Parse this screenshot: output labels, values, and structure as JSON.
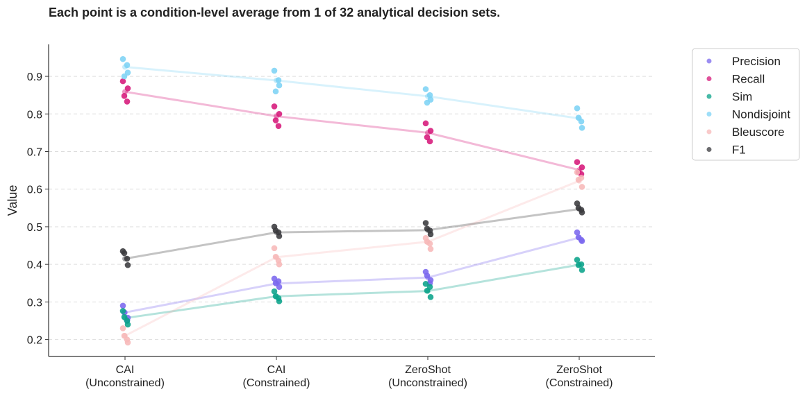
{
  "chart_data": {
    "type": "scatter",
    "title": "Each point is a condition-level average from 1 of 32 analytical decision sets.",
    "xlabel": "",
    "ylabel": "Value",
    "ylim": [
      0.155,
      0.985
    ],
    "yticks": [
      0.2,
      0.3,
      0.4,
      0.5,
      0.6,
      0.7,
      0.8,
      0.9
    ],
    "grid": "horizontal-dashed",
    "legend_position": "upper-right-outside",
    "categories": [
      [
        "CAI",
        "(Unconstrained)"
      ],
      [
        "CAI",
        "(Constrained)"
      ],
      [
        "ZeroShot",
        "(Unconstrained)"
      ],
      [
        "ZeroShot",
        "(Constrained)"
      ]
    ],
    "series": [
      {
        "name": "Precision",
        "color": "#7b68ee",
        "means": [
          0.272,
          0.349,
          0.365,
          0.471
        ],
        "points": [
          [
            0.29,
            0.258,
            0.272,
            0.25
          ],
          [
            0.362,
            0.34,
            0.35,
            0.355
          ],
          [
            0.38,
            0.358,
            0.37,
            0.35
          ],
          [
            0.485,
            0.462,
            0.472,
            0.465
          ]
        ]
      },
      {
        "name": "Recall",
        "color": "#d6187a",
        "means": [
          0.859,
          0.794,
          0.75,
          0.651
        ],
        "points": [
          [
            0.887,
            0.868,
            0.848,
            0.833
          ],
          [
            0.82,
            0.8,
            0.783,
            0.768
          ],
          [
            0.775,
            0.755,
            0.738,
            0.727
          ],
          [
            0.672,
            0.658,
            0.645,
            0.64
          ]
        ]
      },
      {
        "name": "Sim",
        "color": "#0aa38a",
        "means": [
          0.257,
          0.315,
          0.329,
          0.399
        ],
        "points": [
          [
            0.276,
            0.24,
            0.26,
            0.25
          ],
          [
            0.328,
            0.302,
            0.315,
            0.31
          ],
          [
            0.348,
            0.313,
            0.33,
            0.34
          ],
          [
            0.412,
            0.385,
            0.398,
            0.4
          ]
        ]
      },
      {
        "name": "Nondisjoint",
        "color": "#7dd3f5",
        "means": [
          0.925,
          0.889,
          0.847,
          0.788
        ],
        "points": [
          [
            0.946,
            0.91,
            0.9,
            0.93
          ],
          [
            0.915,
            0.876,
            0.86,
            0.89
          ],
          [
            0.866,
            0.838,
            0.83,
            0.85
          ],
          [
            0.815,
            0.763,
            0.79,
            0.78
          ]
        ]
      },
      {
        "name": "Bleuscore",
        "color": "#f7b8b8",
        "means": [
          0.21,
          0.419,
          0.46,
          0.622
        ],
        "points": [
          [
            0.23,
            0.192,
            0.21,
            0.2
          ],
          [
            0.443,
            0.4,
            0.42,
            0.41
          ],
          [
            0.47,
            0.441,
            0.46,
            0.455
          ],
          [
            0.645,
            0.606,
            0.625,
            0.63
          ]
        ]
      },
      {
        "name": "F1",
        "color": "#3a3a3d",
        "means": [
          0.415,
          0.485,
          0.491,
          0.547
        ],
        "points": [
          [
            0.435,
            0.398,
            0.43,
            0.415
          ],
          [
            0.5,
            0.475,
            0.49,
            0.485
          ],
          [
            0.51,
            0.48,
            0.495,
            0.49
          ],
          [
            0.562,
            0.538,
            0.55,
            0.545
          ]
        ]
      }
    ]
  }
}
